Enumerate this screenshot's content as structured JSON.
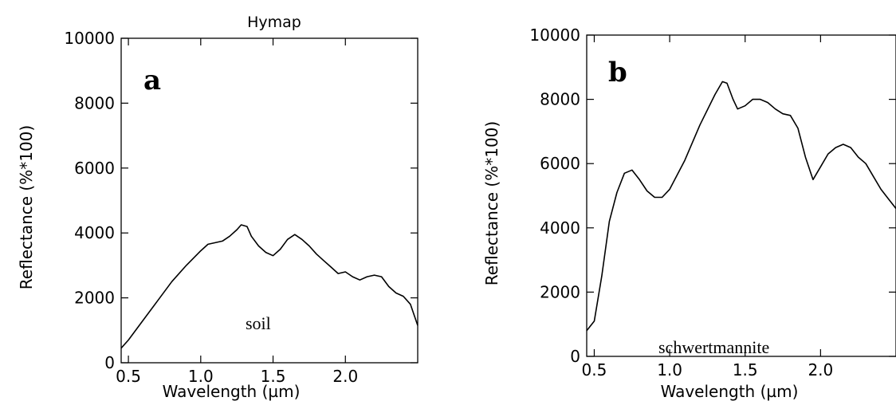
{
  "chart_data": [
    {
      "type": "line",
      "panel_label": "a",
      "title": "Hymap",
      "xlabel": "Wavelength (µm)",
      "ylabel": "Reflectance (%*100)",
      "annotation": "soil",
      "xlim": [
        0.45,
        2.5
      ],
      "ylim": [
        0,
        10000
      ],
      "xticks": [
        0.5,
        1.0,
        1.5,
        2.0
      ],
      "xtick_labels": [
        "0.5",
        "1.0",
        "1.5",
        "2.0"
      ],
      "yticks": [
        0,
        2000,
        4000,
        6000,
        8000,
        10000
      ],
      "ytick_labels": [
        "0",
        "2000",
        "4000",
        "6000",
        "8000",
        "10000"
      ],
      "series": [
        {
          "x": [
            0.45,
            0.5,
            0.6,
            0.7,
            0.8,
            0.9,
            1.0,
            1.05,
            1.1,
            1.15,
            1.2,
            1.25,
            1.28,
            1.32,
            1.35,
            1.4,
            1.45,
            1.5,
            1.55,
            1.6,
            1.65,
            1.7,
            1.75,
            1.8,
            1.85,
            1.9,
            1.95,
            2.0,
            2.05,
            2.1,
            2.15,
            2.2,
            2.25,
            2.3,
            2.35,
            2.4,
            2.45,
            2.5
          ],
          "y": [
            450,
            700,
            1300,
            1900,
            2500,
            3000,
            3450,
            3650,
            3700,
            3750,
            3900,
            4100,
            4250,
            4200,
            3900,
            3600,
            3400,
            3300,
            3500,
            3800,
            3950,
            3800,
            3600,
            3350,
            3150,
            2950,
            2750,
            2800,
            2650,
            2550,
            2650,
            2700,
            2650,
            2350,
            2150,
            2050,
            1800,
            1150
          ]
        }
      ]
    },
    {
      "type": "line",
      "panel_label": "b",
      "title": "",
      "xlabel": "Wavelength (µm)",
      "ylabel": "Reflectance (%*100)",
      "annotation": "schwertmannite",
      "xlim": [
        0.45,
        2.5
      ],
      "ylim": [
        0,
        10000
      ],
      "xticks": [
        0.5,
        1.0,
        1.5,
        2.0
      ],
      "xtick_labels": [
        "0.5",
        "1.0",
        "1.5",
        "2.0"
      ],
      "yticks": [
        0,
        2000,
        4000,
        6000,
        8000,
        10000
      ],
      "ytick_labels": [
        "0",
        "2000",
        "4000",
        "6000",
        "8000",
        "10000"
      ],
      "series": [
        {
          "x": [
            0.45,
            0.5,
            0.55,
            0.6,
            0.65,
            0.7,
            0.75,
            0.8,
            0.85,
            0.9,
            0.95,
            1.0,
            1.1,
            1.2,
            1.3,
            1.35,
            1.38,
            1.42,
            1.45,
            1.5,
            1.55,
            1.6,
            1.65,
            1.7,
            1.75,
            1.8,
            1.85,
            1.9,
            1.95,
            2.0,
            2.05,
            2.1,
            2.15,
            2.2,
            2.25,
            2.3,
            2.35,
            2.4,
            2.45,
            2.5
          ],
          "y": [
            800,
            1100,
            2500,
            4200,
            5100,
            5700,
            5800,
            5500,
            5150,
            4950,
            4950,
            5200,
            6100,
            7200,
            8150,
            8550,
            8500,
            8000,
            7700,
            7800,
            8000,
            8000,
            7900,
            7700,
            7550,
            7500,
            7100,
            6200,
            5500,
            5900,
            6300,
            6500,
            6600,
            6500,
            6200,
            6000,
            5600,
            5200,
            4900,
            4600
          ]
        }
      ]
    }
  ]
}
